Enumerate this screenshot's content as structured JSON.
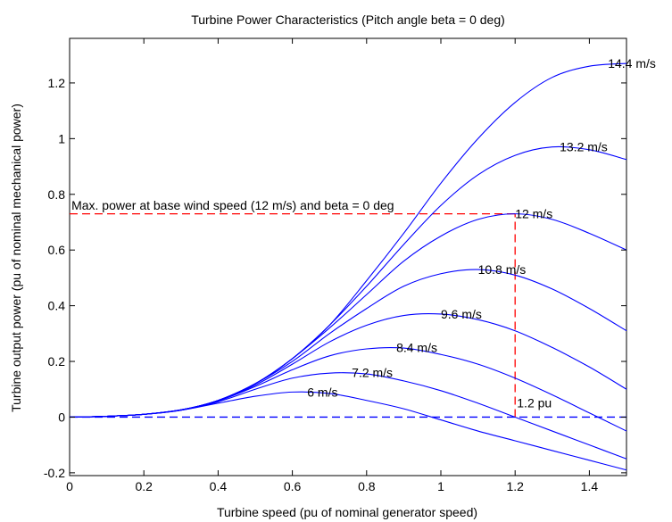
{
  "chart_data": {
    "type": "line",
    "title": "Turbine Power Characteristics (Pitch angle beta = 0 deg)",
    "xlabel": "Turbine speed (pu of nominal generator speed)",
    "ylabel": "Turbine output power (pu of nominal mechanical power)",
    "xlim": [
      0,
      1.5
    ],
    "ylim": [
      -0.21,
      1.36
    ],
    "xticks": [
      0,
      0.2,
      0.4,
      0.6,
      0.8,
      1,
      1.2,
      1.4
    ],
    "xtick_labels": [
      "0",
      "0.2",
      "0.4",
      "0.6",
      "0.8",
      "1",
      "1.2",
      "1.4"
    ],
    "yticks": [
      -0.2,
      0,
      0.2,
      0.4,
      0.6,
      0.8,
      1,
      1.2
    ],
    "ytick_labels": [
      "-0.2",
      "0",
      "0.2",
      "0.4",
      "0.6",
      "0.8",
      "1",
      "1.2"
    ],
    "grid": false,
    "series": [
      {
        "name": "6 m/s",
        "peak_x": 0.64,
        "peak_y": 0.09,
        "x": [
          0,
          0.1,
          0.2,
          0.3,
          0.4,
          0.5,
          0.6,
          0.7,
          0.8,
          0.9,
          1.0,
          1.1,
          1.2,
          1.3,
          1.4,
          1.5
        ],
        "y": [
          0,
          0.003,
          0.01,
          0.025,
          0.05,
          0.075,
          0.09,
          0.085,
          0.06,
          0.03,
          -0.01,
          -0.05,
          -0.085,
          -0.12,
          -0.155,
          -0.19
        ]
      },
      {
        "name": "7.2 m/s",
        "peak_x": 0.76,
        "peak_y": 0.16,
        "x": [
          0,
          0.1,
          0.2,
          0.3,
          0.4,
          0.5,
          0.6,
          0.7,
          0.8,
          0.9,
          1.0,
          1.1,
          1.2,
          1.3,
          1.4,
          1.5
        ],
        "y": [
          0,
          0.003,
          0.01,
          0.025,
          0.055,
          0.1,
          0.14,
          0.158,
          0.155,
          0.13,
          0.095,
          0.05,
          0.0,
          -0.05,
          -0.1,
          -0.15
        ]
      },
      {
        "name": "8.4 m/s",
        "peak_x": 0.88,
        "peak_y": 0.25,
        "x": [
          0,
          0.1,
          0.2,
          0.3,
          0.4,
          0.5,
          0.6,
          0.7,
          0.8,
          0.9,
          1.0,
          1.1,
          1.2,
          1.3,
          1.4,
          1.5
        ],
        "y": [
          0,
          0.003,
          0.01,
          0.025,
          0.058,
          0.11,
          0.17,
          0.22,
          0.245,
          0.248,
          0.225,
          0.19,
          0.14,
          0.08,
          0.015,
          -0.05
        ]
      },
      {
        "name": "9.6 m/s",
        "peak_x": 1.0,
        "peak_y": 0.37,
        "x": [
          0,
          0.1,
          0.2,
          0.3,
          0.4,
          0.5,
          0.6,
          0.7,
          0.8,
          0.9,
          1.0,
          1.1,
          1.2,
          1.3,
          1.4,
          1.5
        ],
        "y": [
          0,
          0.003,
          0.01,
          0.026,
          0.06,
          0.115,
          0.19,
          0.27,
          0.33,
          0.365,
          0.37,
          0.35,
          0.31,
          0.25,
          0.18,
          0.1
        ]
      },
      {
        "name": "10.8 m/s",
        "peak_x": 1.1,
        "peak_y": 0.53,
        "x": [
          0,
          0.1,
          0.2,
          0.3,
          0.4,
          0.5,
          0.6,
          0.7,
          0.8,
          0.9,
          1.0,
          1.1,
          1.2,
          1.3,
          1.4,
          1.5
        ],
        "y": [
          0,
          0.003,
          0.01,
          0.026,
          0.06,
          0.12,
          0.2,
          0.3,
          0.39,
          0.47,
          0.515,
          0.53,
          0.51,
          0.46,
          0.39,
          0.31
        ]
      },
      {
        "name": "12 m/s",
        "peak_x": 1.2,
        "peak_y": 0.73,
        "x": [
          0,
          0.1,
          0.2,
          0.3,
          0.4,
          0.5,
          0.6,
          0.7,
          0.8,
          0.9,
          1.0,
          1.1,
          1.2,
          1.3,
          1.4,
          1.5
        ],
        "y": [
          0,
          0.003,
          0.01,
          0.026,
          0.06,
          0.12,
          0.21,
          0.32,
          0.44,
          0.56,
          0.65,
          0.71,
          0.73,
          0.71,
          0.66,
          0.6
        ]
      },
      {
        "name": "13.2 m/s",
        "peak_x": 1.32,
        "peak_y": 0.97,
        "x": [
          0,
          0.1,
          0.2,
          0.3,
          0.4,
          0.5,
          0.6,
          0.7,
          0.8,
          0.9,
          1.0,
          1.1,
          1.2,
          1.3,
          1.4,
          1.5
        ],
        "y": [
          0,
          0.003,
          0.01,
          0.026,
          0.06,
          0.12,
          0.21,
          0.33,
          0.47,
          0.62,
          0.76,
          0.87,
          0.94,
          0.97,
          0.96,
          0.925
        ]
      },
      {
        "name": "14.4 m/s",
        "peak_x": 1.45,
        "peak_y": 1.27,
        "x": [
          0,
          0.1,
          0.2,
          0.3,
          0.4,
          0.5,
          0.6,
          0.7,
          0.8,
          0.9,
          1.0,
          1.1,
          1.2,
          1.3,
          1.4,
          1.5
        ],
        "y": [
          0,
          0.003,
          0.01,
          0.026,
          0.06,
          0.12,
          0.21,
          0.33,
          0.49,
          0.66,
          0.84,
          1.0,
          1.13,
          1.22,
          1.26,
          1.27
        ]
      }
    ],
    "reference_lines": [
      {
        "kind": "horizontal",
        "y": 0.73,
        "x_from": 0,
        "x_to": 1.2,
        "color": "#ff0000"
      },
      {
        "kind": "vertical",
        "x": 1.2,
        "y_from": 0,
        "y_to": 0.73,
        "color": "#ff0000"
      },
      {
        "kind": "horizontal",
        "y": 0,
        "x_from": 0,
        "x_to": 1.5,
        "color": "#0000ff"
      }
    ],
    "annotations": [
      {
        "text": "Max. power at base wind speed (12 m/s) and beta = 0 deg",
        "x": 0.005,
        "y": 0.745
      },
      {
        "text": "1.2 pu",
        "x": 1.205,
        "y": 0.035
      }
    ],
    "colors": {
      "curve": "#0000ff",
      "max_power_line": "#ff0000",
      "zero_line": "#0000ff",
      "axes": "#000000"
    }
  }
}
